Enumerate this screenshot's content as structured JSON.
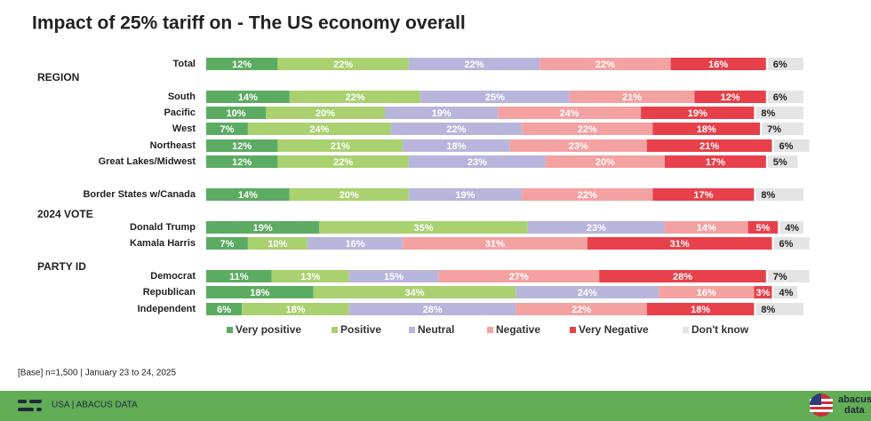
{
  "chart_data": {
    "type": "stacked-bar-horizontal",
    "title": "Impact of 25% tariff on - The US economy overall",
    "categories": [
      "Total",
      "South",
      "Pacific",
      "West",
      "Northeast",
      "Great Lakes/Midwest",
      "Border States w/Canada",
      "Donald Trump",
      "Kamala Harris",
      "Democrat",
      "Republican",
      "Independent"
    ],
    "group_labels": [
      "REGION",
      "2024 VOTE",
      "PARTY ID"
    ],
    "series": [
      {
        "name": "Very positive",
        "color": "#5cab62",
        "values": [
          12,
          14,
          10,
          7,
          12,
          12,
          14,
          19,
          7,
          11,
          18,
          6
        ],
        "value_labels": [
          "12%",
          "14%",
          "10%",
          "7%",
          "12%",
          "12%",
          "14%",
          "19%",
          "7%",
          "11%",
          "18%",
          "6%"
        ]
      },
      {
        "name": "Positive",
        "color": "#a9d170",
        "values": [
          22,
          22,
          20,
          24,
          21,
          22,
          20,
          35,
          10,
          13,
          34,
          18
        ],
        "value_labels": [
          "22%",
          "22%",
          "20%",
          "24%",
          "21%",
          "22%",
          "20%",
          "35%",
          "10%",
          "13%",
          "34%",
          "18%"
        ]
      },
      {
        "name": "Neutral",
        "color": "#b8b5dc",
        "values": [
          22,
          25,
          19,
          22,
          18,
          23,
          19,
          23,
          16,
          15,
          24,
          28
        ],
        "value_labels": [
          "22%",
          "25%",
          "19%",
          "22%",
          "18%",
          "23%",
          "19%",
          "23%",
          "16%",
          "15%",
          "24%",
          "28%"
        ]
      },
      {
        "name": "Negative",
        "color": "#f4a1a1",
        "values": [
          22,
          21,
          24,
          22,
          23,
          20,
          22,
          14,
          31,
          27,
          16,
          22
        ],
        "value_labels": [
          "22%",
          "21%",
          "24%",
          "22%",
          "23%",
          "20%",
          "22%",
          "14%",
          "31%",
          "27%",
          "16%",
          "22%"
        ]
      },
      {
        "name": "Very Negative",
        "color": "#e8404a",
        "values": [
          16,
          12,
          19,
          18,
          21,
          17,
          17,
          5,
          31,
          28,
          3,
          18
        ],
        "value_labels": [
          "16%",
          "12%",
          "19%",
          "18%",
          "21%",
          "17%",
          "17%",
          "5%",
          "31%",
          "28%",
          "3%",
          "18%"
        ]
      },
      {
        "name": "Don't know",
        "color": "#e4e4e4",
        "values": [
          6,
          6,
          8,
          7,
          6,
          5,
          8,
          4,
          6,
          7,
          4,
          8
        ],
        "value_labels": [
          "6%",
          "6%",
          "8%",
          "7%",
          "6%",
          "5%",
          "8%",
          "4%",
          "6%",
          "7%",
          "4%",
          "8%"
        ]
      }
    ]
  },
  "footer": {
    "base": "[Base] n=1,500 | January 23 to 24, 2025",
    "brand": "USA  |  ABACUS DATA",
    "logo_top": "abacus",
    "logo_bottom": "data"
  }
}
